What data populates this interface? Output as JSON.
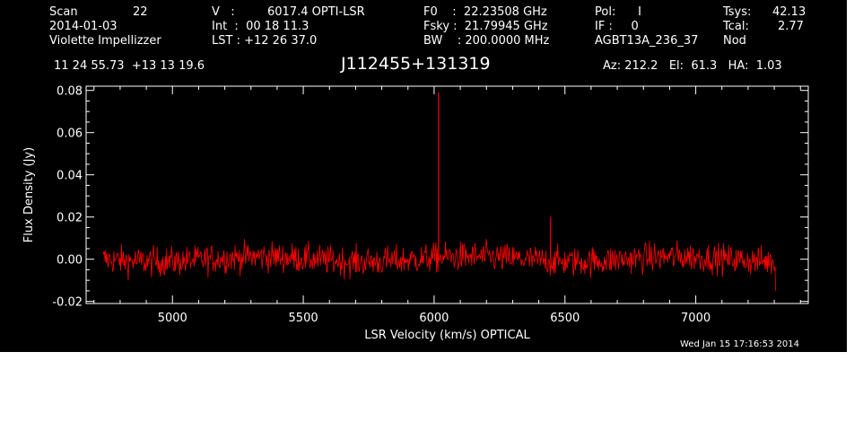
{
  "header": {
    "col1": {
      "scan_label": "Scan",
      "scan_value": "22",
      "date": "2014-01-03",
      "observer": "Violette Impellizzer"
    },
    "col2": {
      "v_label": "V   :",
      "v_value": "6017.4 OPTI-LSR",
      "int": "Int  :  00 18 11.3",
      "lst": "LST : +12 26 37.0"
    },
    "col3": {
      "f0": "F0    :  22.23508 GHz",
      "fsky": "Fsky :  21.79945 GHz",
      "bw": "BW    : 200.0000 MHz"
    },
    "col4": {
      "pol": "Pol:      I",
      "if": "IF :     0",
      "project": "AGBT13A_236_37"
    },
    "col5": {
      "tsys_label": "Tsys:",
      "tsys_value": "42.13",
      "tcal_label": "Tcal:",
      "tcal_value": "2.77",
      "mode": "Nod"
    },
    "coords": "11 24 55.73  +13 13 19.6",
    "source": "J112455+131319",
    "az_el_ha": "Az: 212.2   El:  61.3   HA:  1.03"
  },
  "timestamp": "Wed Jan 15 17:16:53 2014",
  "colors": {
    "background": "#000000",
    "axes": "#ffffff",
    "trace": "#ff0000"
  },
  "chart_data": {
    "type": "line",
    "xlabel": "LSR Velocity (km/s) OPTICAL",
    "ylabel": "Flux Density (Jy)",
    "xlim": [
      4670,
      7430
    ],
    "ylim": [
      -0.021,
      0.082
    ],
    "x_ticks": [
      5000,
      5500,
      6000,
      6500,
      7000
    ],
    "y_ticks": [
      -0.02,
      0.0,
      0.02,
      0.04,
      0.06,
      0.08
    ],
    "y_tick_labels": [
      "-0.02",
      "0.00",
      "0.02",
      "0.04",
      "0.06",
      "0.08"
    ],
    "x_minor_step": 100,
    "y_minor_step": 0.005,
    "grid": false,
    "series": [
      {
        "color": "#ff0000",
        "x_range": [
          4735,
          7305
        ],
        "noise_rms": 0.0035,
        "baseline": 0.0,
        "features": [
          {
            "x": 6017,
            "y": 0.079
          },
          {
            "x": 6445,
            "y": 0.02
          }
        ],
        "ends": [
          {
            "x": 7305,
            "y": -0.015
          }
        ]
      }
    ]
  }
}
